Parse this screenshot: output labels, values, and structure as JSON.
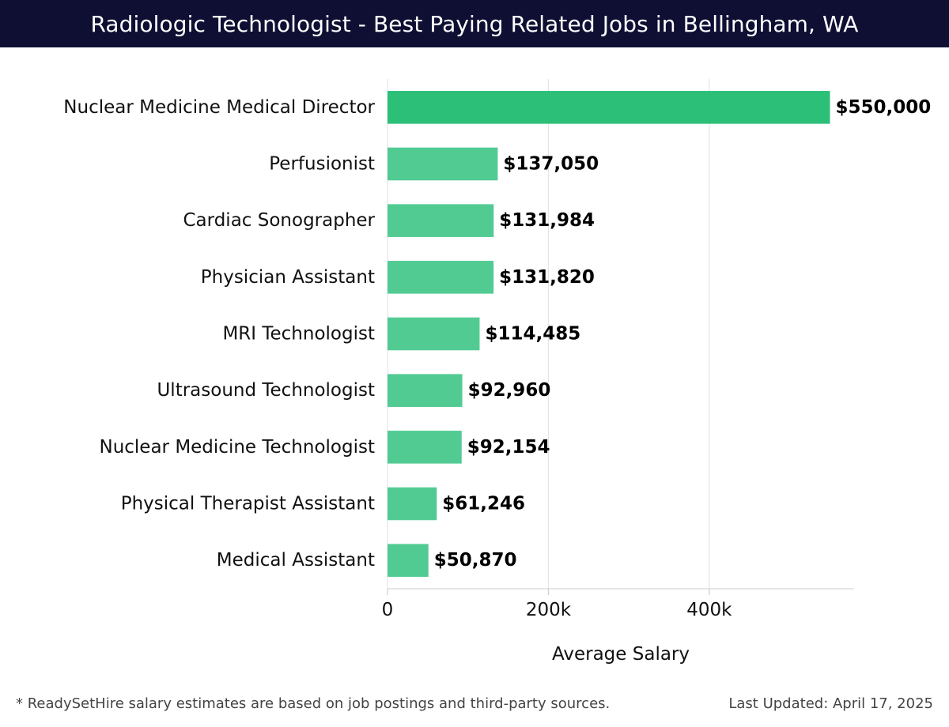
{
  "header": {
    "title": "Radiologic Technologist - Best Paying Related Jobs in Bellingham, WA"
  },
  "colors": {
    "header_bg": "#0e0f33",
    "top_bar": "#2bbf78",
    "bar": "#52cb93",
    "grid": "#e5e5e5"
  },
  "chart_data": {
    "type": "bar",
    "orientation": "horizontal",
    "categories": [
      "Nuclear Medicine Medical Director",
      "Perfusionist",
      "Cardiac Sonographer",
      "Physician Assistant",
      "MRI Technologist",
      "Ultrasound Technologist",
      "Nuclear Medicine Technologist",
      "Physical Therapist Assistant",
      "Medical Assistant"
    ],
    "values": [
      550000,
      137050,
      131984,
      131820,
      114485,
      92960,
      92154,
      61246,
      50870
    ],
    "value_labels": [
      "$550,000",
      "$137,050",
      "$131,984",
      "$131,820",
      "$114,485",
      "$92,960",
      "$92,154",
      "$61,246",
      "$50,870"
    ],
    "xlabel": "Average Salary",
    "xlim": [
      0,
      580000
    ],
    "xticks": [
      0,
      200000,
      400000
    ],
    "xtick_labels": [
      "0",
      "200k",
      "400k"
    ],
    "grid": true
  },
  "footer": {
    "note": "* ReadySetHire salary estimates are based on job postings and third-party sources.",
    "updated": "Last Updated: April 17, 2025"
  }
}
